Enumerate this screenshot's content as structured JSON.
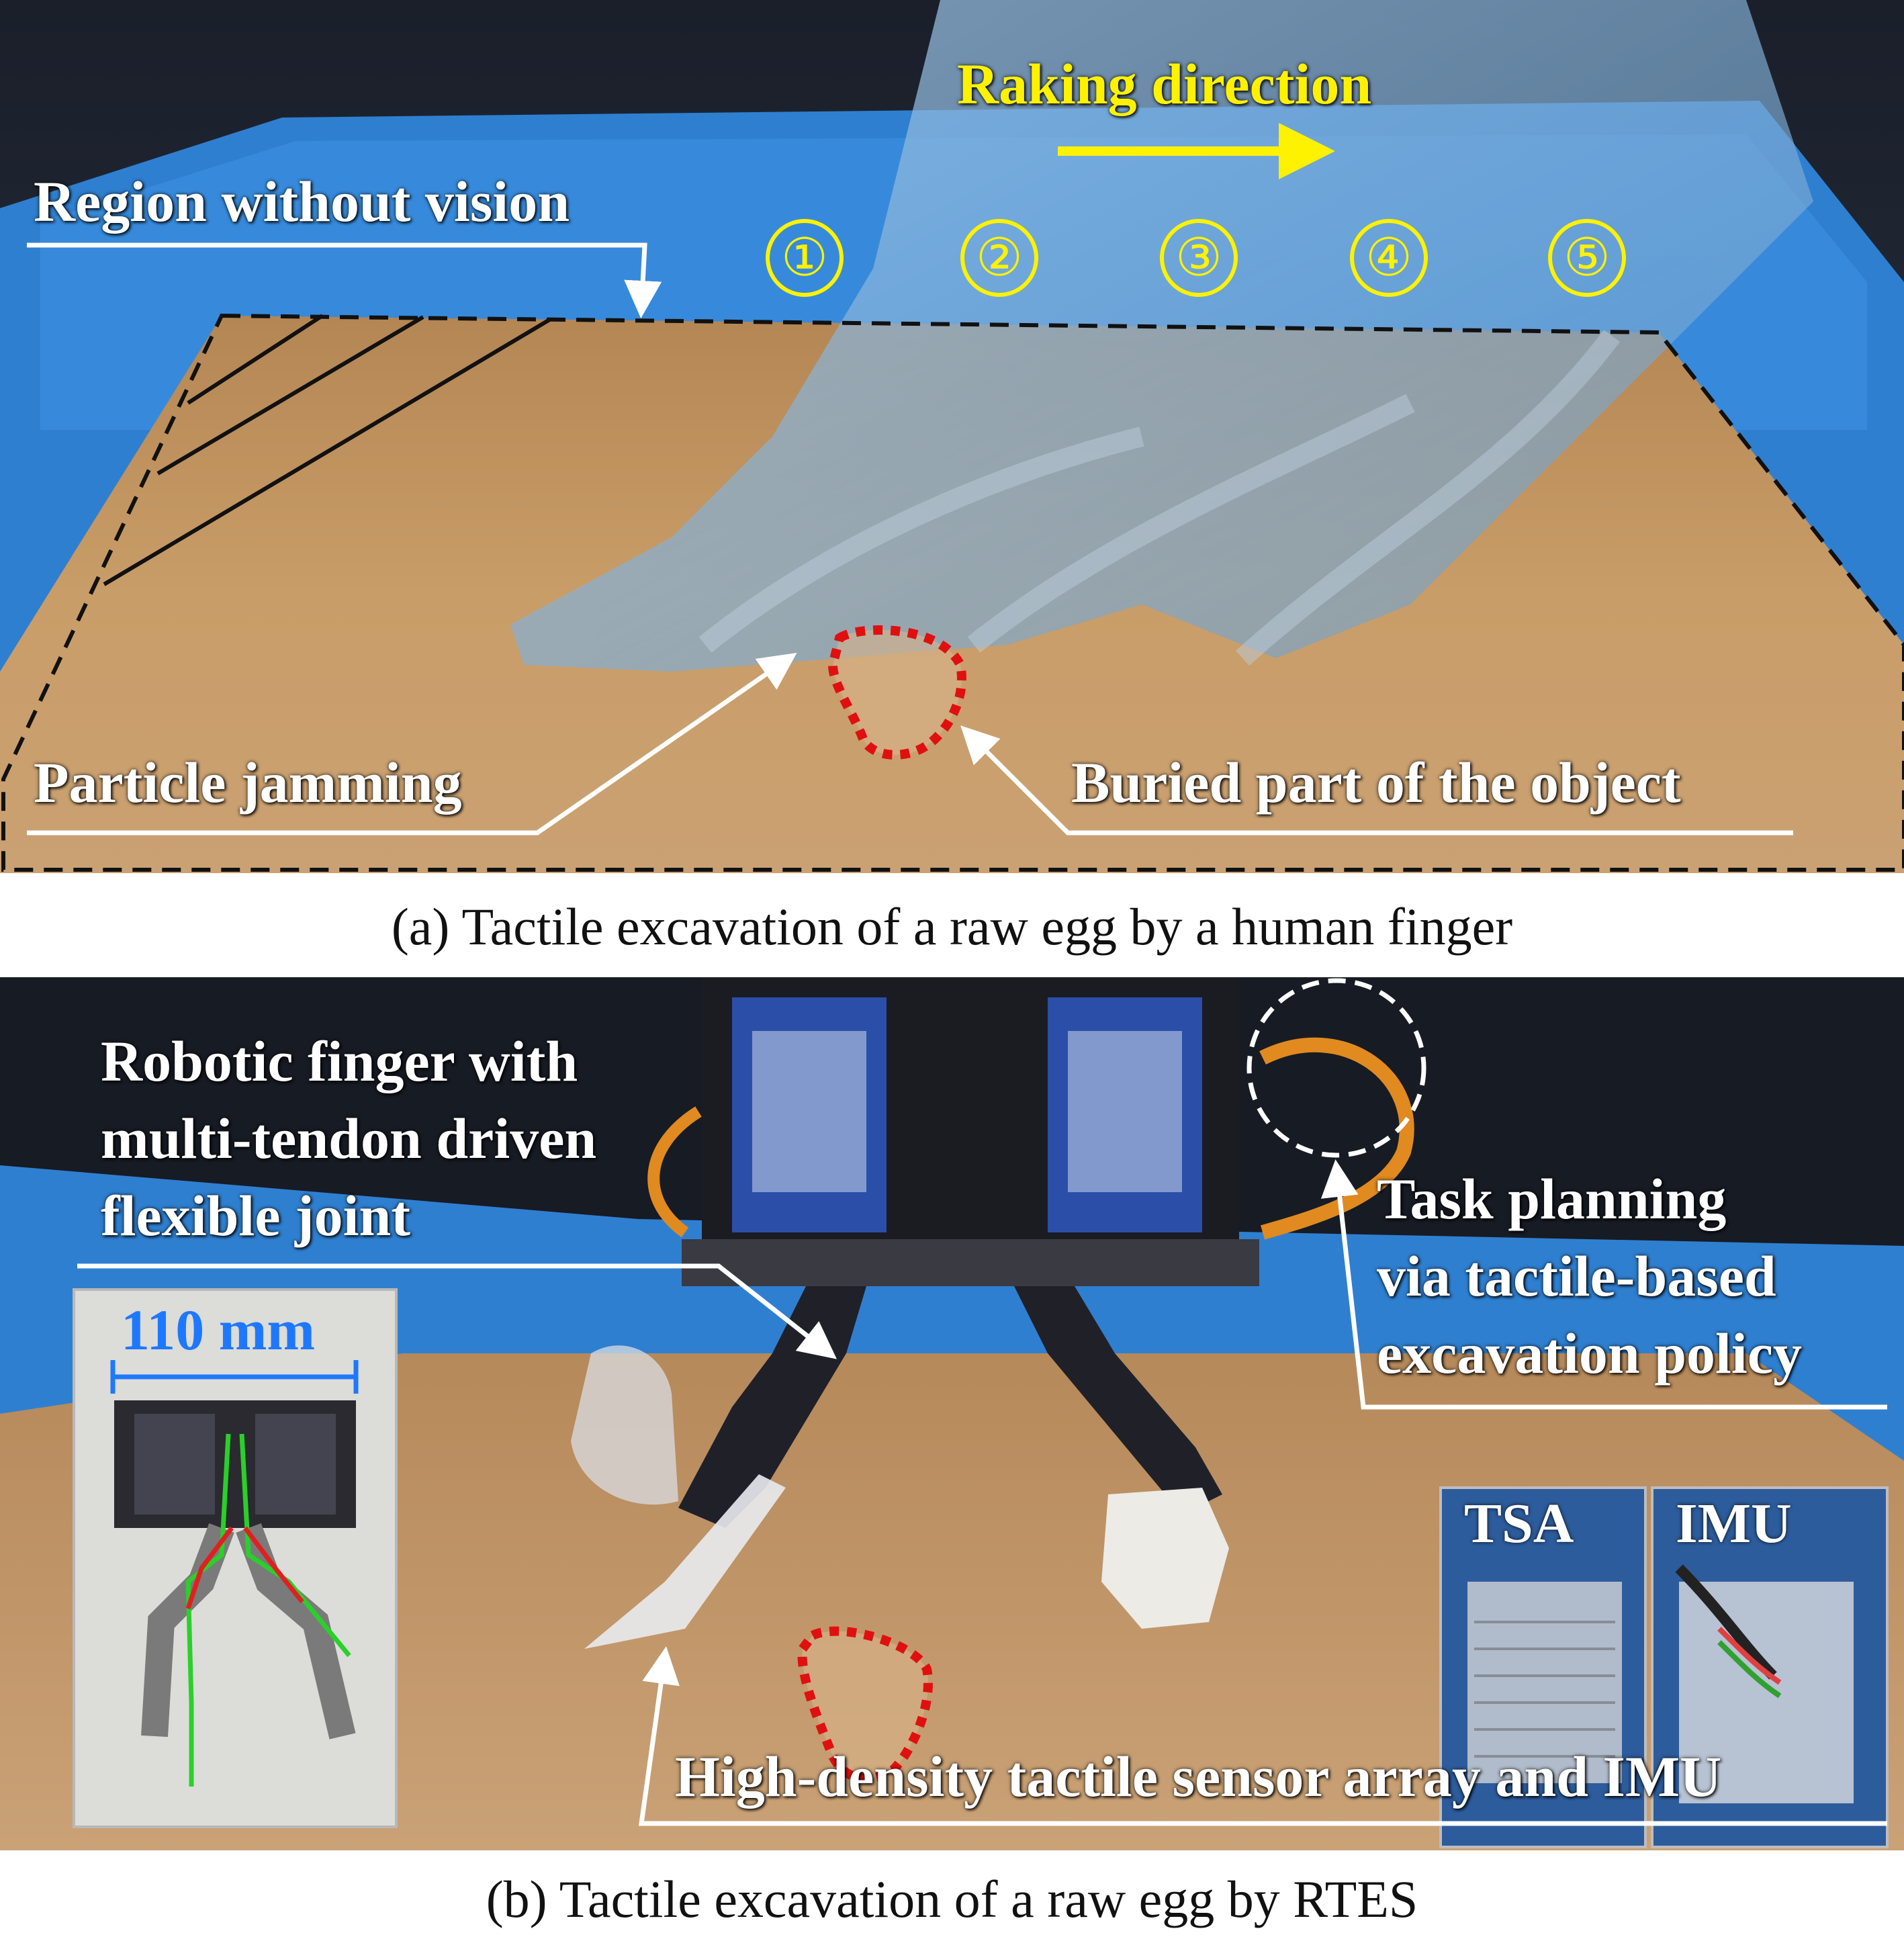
{
  "panel_a": {
    "raking_direction": "Raking direction",
    "steps": [
      "①",
      "②",
      "③",
      "④",
      "⑤"
    ],
    "region_without_vision": "Region without vision",
    "particle_jamming": "Particle jamming",
    "buried_part": "Buried part of the object",
    "caption": "(a) Tactile excavation of a raw egg by a human finger"
  },
  "panel_b": {
    "robotic_finger": [
      "Robotic finger with",
      "multi-tendon driven",
      "flexible joint"
    ],
    "task_planning": [
      "Task planning",
      "via tactile-based",
      "excavation policy"
    ],
    "dimension": "110 mm",
    "tsa_label": "TSA",
    "imu_label": "IMU",
    "sensor_array": "High-density tactile sensor array and IMU",
    "caption": "(b) Tactile excavation of a raw egg by RTES"
  },
  "colors": {
    "annotation_yellow": "#fff200",
    "egg_outline_red": "#e01010",
    "dimension_blue": "#1e78ff",
    "sand": "#c89a64",
    "tray_blue": "#2f7fd0",
    "glove_blue": "#7fb0dc"
  }
}
